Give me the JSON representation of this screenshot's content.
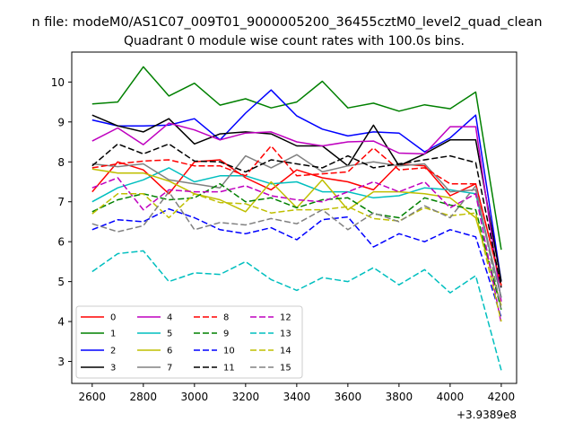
{
  "chart_data": {
    "type": "line",
    "suptitle": "n file: modeM0/AS1C07_009T01_9000005200_36455cztM0_level2_quad_clean",
    "title": "Quadrant 0 module wise count rates with 100.0s bins.",
    "xlabel": "",
    "ylabel": "",
    "x_offset_label": "+3.9389e8",
    "xlim": [
      2520,
      4260
    ],
    "ylim": [
      2.45,
      10.75
    ],
    "xticks": [
      2600,
      2800,
      3000,
      3200,
      3400,
      3600,
      3800,
      4000,
      4200
    ],
    "yticks": [
      3,
      4,
      5,
      6,
      7,
      8,
      9,
      10
    ],
    "x": [
      2600,
      2700,
      2800,
      2900,
      3000,
      3100,
      3200,
      3300,
      3400,
      3500,
      3600,
      3700,
      3800,
      3900,
      4000,
      4100,
      4200
    ],
    "grid": false,
    "legend": {
      "position": "lower-left",
      "ncol": 4
    },
    "series": [
      {
        "name": "0",
        "color": "#ff0000",
        "dash": "solid",
        "values": [
          7.25,
          8.0,
          7.8,
          7.2,
          8.0,
          8.05,
          7.6,
          7.3,
          7.8,
          7.6,
          7.5,
          7.3,
          7.95,
          7.9,
          7.15,
          7.45,
          4.9
        ]
      },
      {
        "name": "1",
        "color": "#008000",
        "dash": "solid",
        "values": [
          9.45,
          9.5,
          10.38,
          9.65,
          9.97,
          9.42,
          9.58,
          9.35,
          9.5,
          10.02,
          9.35,
          9.47,
          9.27,
          9.43,
          9.33,
          9.75,
          5.8
        ]
      },
      {
        "name": "2",
        "color": "#0000ff",
        "dash": "solid",
        "values": [
          9.05,
          8.9,
          8.9,
          8.92,
          9.08,
          8.55,
          9.22,
          9.8,
          9.15,
          8.82,
          8.65,
          8.75,
          8.72,
          8.25,
          8.6,
          9.17,
          5.0
        ]
      },
      {
        "name": "3",
        "color": "#000000",
        "dash": "solid",
        "values": [
          9.17,
          8.9,
          8.75,
          9.08,
          8.45,
          8.7,
          8.75,
          8.7,
          8.4,
          8.4,
          7.9,
          8.92,
          7.9,
          8.2,
          8.55,
          8.55,
          5.0
        ]
      },
      {
        "name": "4",
        "color": "#bf00bf",
        "dash": "solid",
        "values": [
          8.52,
          8.85,
          8.43,
          8.97,
          8.8,
          8.55,
          8.72,
          8.75,
          8.5,
          8.4,
          8.5,
          8.52,
          8.22,
          8.2,
          8.88,
          8.88,
          4.5
        ]
      },
      {
        "name": "5",
        "color": "#00bfbf",
        "dash": "solid",
        "values": [
          7.0,
          7.35,
          7.55,
          7.85,
          7.5,
          7.65,
          7.65,
          7.45,
          7.5,
          7.25,
          7.25,
          7.1,
          7.15,
          7.35,
          7.3,
          7.2,
          4.6
        ]
      },
      {
        "name": "6",
        "color": "#bfbf00",
        "dash": "solid",
        "values": [
          7.82,
          7.72,
          7.72,
          7.52,
          7.2,
          7.05,
          6.75,
          7.5,
          6.85,
          7.55,
          6.8,
          7.25,
          7.25,
          7.2,
          7.1,
          6.6,
          4.4
        ]
      },
      {
        "name": "7",
        "color": "#808080",
        "dash": "solid",
        "values": [
          7.95,
          7.88,
          7.95,
          7.55,
          7.45,
          7.35,
          8.15,
          7.85,
          8.18,
          7.75,
          7.9,
          8.0,
          7.9,
          7.95,
          7.25,
          7.3,
          4.6
        ]
      },
      {
        "name": "8",
        "color": "#ff0000",
        "dash": "dashed",
        "values": [
          7.85,
          7.95,
          8.02,
          8.05,
          7.9,
          7.9,
          7.65,
          8.4,
          7.65,
          7.7,
          7.75,
          8.35,
          7.8,
          7.85,
          7.45,
          7.45,
          4.9
        ]
      },
      {
        "name": "9",
        "color": "#008000",
        "dash": "dashed",
        "values": [
          6.75,
          7.05,
          7.2,
          7.05,
          7.1,
          7.45,
          7.0,
          7.1,
          6.85,
          7.05,
          7.1,
          6.7,
          6.6,
          7.1,
          6.92,
          6.8,
          4.3
        ]
      },
      {
        "name": "10",
        "color": "#0000ff",
        "dash": "dashed",
        "values": [
          6.3,
          6.55,
          6.5,
          6.82,
          6.6,
          6.3,
          6.2,
          6.35,
          6.05,
          6.55,
          6.62,
          5.87,
          6.2,
          6.0,
          6.3,
          6.12,
          4.1
        ]
      },
      {
        "name": "11",
        "color": "#000000",
        "dash": "dashed",
        "values": [
          7.9,
          8.45,
          8.2,
          8.45,
          8.02,
          8.0,
          7.75,
          8.05,
          7.95,
          7.85,
          8.15,
          7.85,
          7.95,
          8.05,
          8.15,
          7.98,
          4.85
        ]
      },
      {
        "name": "12",
        "color": "#bf00bf",
        "dash": "dashed",
        "values": [
          7.35,
          7.6,
          6.8,
          7.3,
          7.25,
          7.25,
          7.4,
          7.15,
          7.05,
          7.0,
          7.25,
          7.5,
          7.25,
          7.5,
          6.85,
          7.2,
          3.95
        ]
      },
      {
        "name": "13",
        "color": "#00bfbf",
        "dash": "dashed",
        "values": [
          5.25,
          5.7,
          5.77,
          5.0,
          5.22,
          5.18,
          5.5,
          5.05,
          4.78,
          5.1,
          5.0,
          5.35,
          4.92,
          5.3,
          4.72,
          5.15,
          2.78
        ]
      },
      {
        "name": "14",
        "color": "#bfbf00",
        "dash": "dashed",
        "values": [
          6.7,
          7.2,
          7.2,
          6.6,
          7.2,
          6.98,
          6.95,
          6.72,
          6.8,
          6.8,
          6.88,
          6.58,
          6.52,
          6.85,
          6.65,
          6.72,
          4.0
        ]
      },
      {
        "name": "15",
        "color": "#808080",
        "dash": "dashed",
        "values": [
          6.45,
          6.25,
          6.4,
          7.25,
          6.3,
          6.48,
          6.42,
          6.58,
          6.45,
          6.8,
          6.3,
          6.72,
          6.5,
          6.9,
          6.6,
          7.4,
          4.3
        ]
      }
    ]
  }
}
